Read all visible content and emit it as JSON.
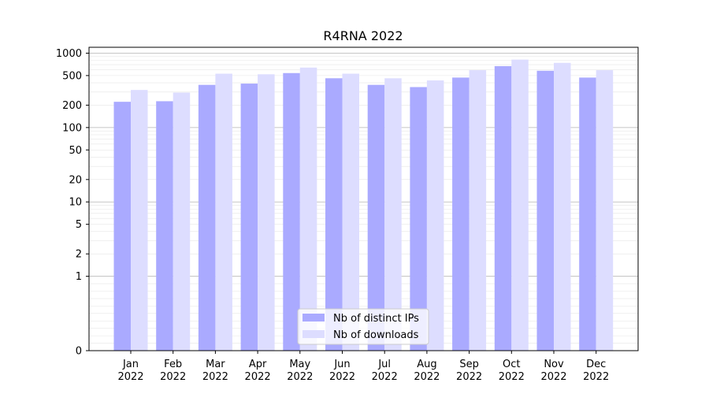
{
  "chart_data": {
    "type": "bar",
    "title": "R4RNA 2022",
    "xlabel": "",
    "ylabel": "",
    "yscale": "symlog",
    "ylim": [
      0,
      1200
    ],
    "yticks": [
      0,
      1,
      2,
      5,
      10,
      20,
      50,
      100,
      200,
      500,
      1000
    ],
    "ytick_labels": [
      "0",
      "1",
      "2",
      "5",
      "10",
      "20",
      "50",
      "100",
      "200",
      "500",
      "1000"
    ],
    "grid": "horizontal",
    "legend_position": "bottom-center",
    "categories": [
      [
        "Jan",
        "2022"
      ],
      [
        "Feb",
        "2022"
      ],
      [
        "Mar",
        "2022"
      ],
      [
        "Apr",
        "2022"
      ],
      [
        "May",
        "2022"
      ],
      [
        "Jun",
        "2022"
      ],
      [
        "Jul",
        "2022"
      ],
      [
        "Aug",
        "2022"
      ],
      [
        "Sep",
        "2022"
      ],
      [
        "Oct",
        "2022"
      ],
      [
        "Nov",
        "2022"
      ],
      [
        "Dec",
        "2022"
      ]
    ],
    "series": [
      {
        "name": "Nb of distinct IPs",
        "color": "#aaaaff",
        "values": [
          222,
          226,
          375,
          390,
          540,
          460,
          375,
          350,
          470,
          670,
          580,
          470
        ]
      },
      {
        "name": "Nb of downloads",
        "color": "#ddddff",
        "values": [
          320,
          295,
          530,
          520,
          640,
          530,
          460,
          430,
          590,
          820,
          740,
          590
        ]
      }
    ]
  }
}
